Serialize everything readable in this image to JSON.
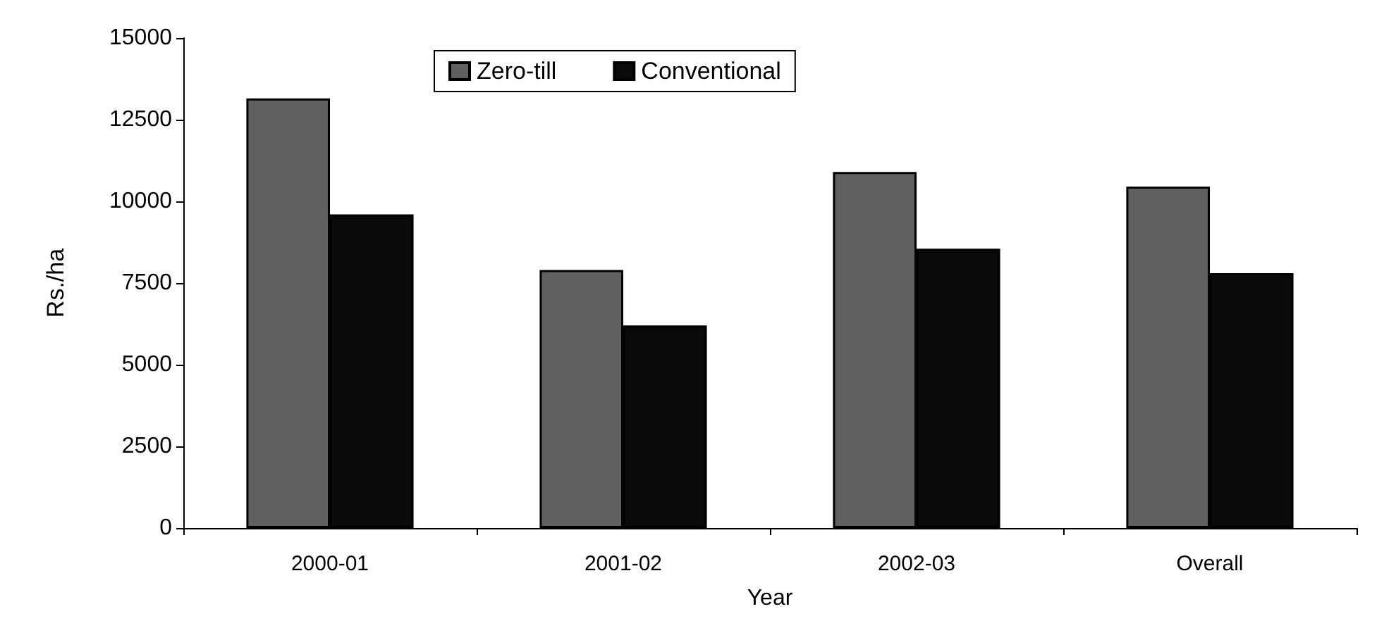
{
  "chart_data": {
    "type": "bar",
    "xlabel": "Year",
    "ylabel": "Rs./ha",
    "categories": [
      "2000-01",
      "2001-02",
      "2002-03",
      "Overall"
    ],
    "series": [
      {
        "name": "Zero-till",
        "color": "#606060",
        "values": [
          13150,
          7900,
          10900,
          10450
        ]
      },
      {
        "name": "Conventional",
        "color": "#0a0a0a",
        "values": [
          9600,
          6200,
          8550,
          7800
        ]
      }
    ],
    "ylim": [
      0,
      15000
    ],
    "yticks": [
      0,
      2500,
      5000,
      7500,
      10000,
      12500,
      15000
    ],
    "grid": false,
    "legend": "top"
  }
}
